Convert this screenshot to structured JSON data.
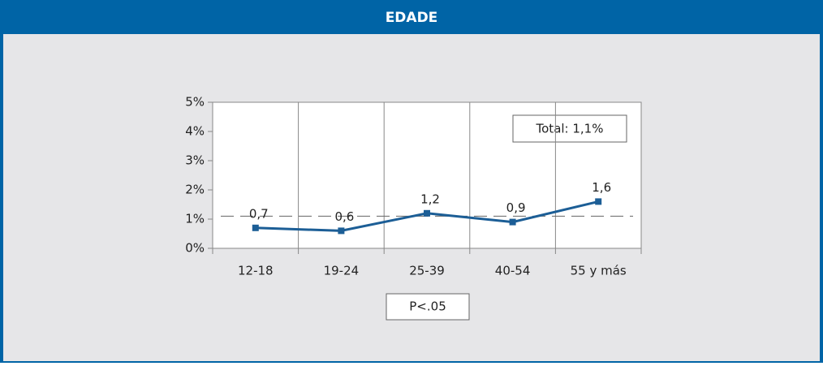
{
  "chart_data": {
    "type": "line",
    "title": "EDADE",
    "categories": [
      "12-18",
      "19-24",
      "25-39",
      "40-54",
      "55 y más"
    ],
    "series": [
      {
        "name": "Edade",
        "color": "#1c5e96",
        "values": [
          0.7,
          0.6,
          1.2,
          0.9,
          1.6
        ],
        "value_labels": [
          "0,7",
          "0,6",
          "1,2",
          "0,9",
          "1,6"
        ]
      }
    ],
    "ylim": [
      0,
      5
    ],
    "yticks": [
      {
        "value": 0,
        "label": "0%"
      },
      {
        "value": 1,
        "label": "1%"
      },
      {
        "value": 2,
        "label": "2%"
      },
      {
        "value": 3,
        "label": "3%"
      },
      {
        "value": 4,
        "label": "4%"
      },
      {
        "value": 5,
        "label": "5%"
      }
    ],
    "reference": {
      "value": 1.1,
      "label": "Total: 1,1%"
    },
    "note": "P<.05",
    "header_color": "#0064a6"
  }
}
